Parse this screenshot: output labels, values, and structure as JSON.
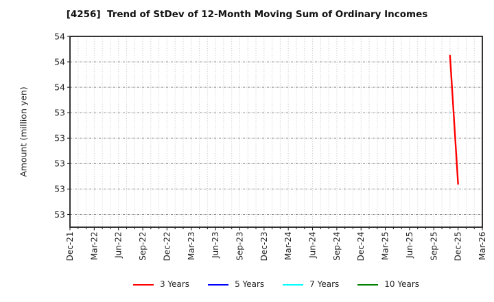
{
  "chart_data": {
    "type": "line",
    "title": "[4256]  Trend of StDev of 12-Month Moving Sum of Ordinary Incomes",
    "ylabel": "Amount (million yen)",
    "xlabel": "",
    "ylim": [
      52.5,
      54.0
    ],
    "yticks": [
      54.0,
      53.8,
      53.6,
      53.4,
      53.2,
      53.0,
      52.8,
      52.6
    ],
    "ytick_labels": [
      "54",
      "54",
      "54",
      "53",
      "53",
      "53",
      "53",
      "53"
    ],
    "x_start": "Dec-21",
    "x_end": "Mar-26",
    "x_total_months": 51,
    "x_minor_gridline_interval_months": 1,
    "x_tick_interval_months": 3,
    "x_tick_labels": [
      "Dec-21",
      "Mar-22",
      "Jun-22",
      "Sep-22",
      "Dec-22",
      "Mar-23",
      "Jun-23",
      "Sep-23",
      "Dec-23",
      "Mar-24",
      "Jun-24",
      "Sep-24",
      "Dec-24",
      "Mar-25",
      "Jun-25",
      "Sep-25",
      "Dec-25",
      "Mar-26"
    ],
    "grid": true,
    "legend_position": "bottom",
    "series": [
      {
        "name": "3 Years",
        "color": "#ff0000",
        "points": [
          {
            "x": "Nov-25",
            "y": 53.85
          },
          {
            "x": "Dec-25",
            "y": 52.84
          }
        ]
      },
      {
        "name": "5 Years",
        "color": "#0000ff",
        "points": []
      },
      {
        "name": "7 Years",
        "color": "#00ffff",
        "points": []
      },
      {
        "name": "10 Years",
        "color": "#008000",
        "points": []
      }
    ],
    "colors": {
      "background": "#ffffff",
      "frame": "#1f1f1f",
      "grid_major": "#8f8f8f",
      "grid_minor": "#c4c4c4",
      "tick_text": "#262626",
      "title_text": "#111111"
    }
  }
}
